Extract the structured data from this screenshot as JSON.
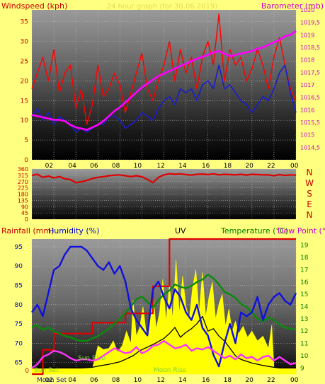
{
  "colors": {
    "background": "#ffff80",
    "wind": "#ff0000",
    "gust": "#ff0000",
    "avg_wind": "#1c1ccc",
    "barometer": "#ff00ff",
    "direction": "#e00000",
    "humidity": "#1010dd",
    "temperature": "#0a8a0a",
    "dew_point": "#ff33ff",
    "rain": "#e00000",
    "uv": "#ffff00",
    "solar": "#000000",
    "label_blue": "#0000cc",
    "label_green": "#008000",
    "label_magenta": "#cc00cc",
    "label_red": "#cc0000",
    "faint_yellow": "#e8d850",
    "sun_label": "#80d040"
  },
  "chart_data": [
    {
      "type": "line",
      "title": "24 hour graph (for 30.06.2019)",
      "left_axis_label": "Windspeed (kph)",
      "right_axis_label": "Barometer (mb)",
      "x_ticks": [
        "02",
        "04",
        "06",
        "08",
        "10",
        "12",
        "14",
        "16",
        "18",
        "20",
        "22",
        "00"
      ],
      "x_range": [
        0,
        24
      ],
      "left_range": [
        0,
        38
      ],
      "left_ticks": [
        "0",
        "5",
        "10",
        "15",
        "20",
        "25",
        "30",
        "35"
      ],
      "right_range": [
        1014,
        1020
      ],
      "right_ticks": [
        "1014,5",
        "1015",
        "1015,5",
        "1016",
        "1016,5",
        "1017",
        "1017,5",
        "1018",
        "1018,5",
        "1019",
        "1019,5",
        "1020"
      ],
      "grid": true,
      "series": [
        {
          "key": "gust",
          "axis": "left",
          "x": [
            0,
            0.5,
            1,
            1.5,
            2,
            2.5,
            3,
            3.5,
            4,
            4.5,
            5,
            5.5,
            6,
            6.5,
            7,
            7.5,
            8,
            8.5,
            9,
            9.5,
            10,
            10.5,
            11,
            11.5,
            12,
            12.5,
            13,
            13.5,
            14,
            14.5,
            15,
            15.5,
            16,
            16.5,
            17,
            17.5,
            18,
            18.5,
            19,
            19.5,
            20,
            20.5,
            21,
            21.5,
            22,
            22.5,
            23,
            23.5,
            24
          ],
          "values": [
            18,
            22,
            26,
            20,
            28,
            17,
            22,
            24,
            13,
            18,
            9,
            14,
            24,
            16,
            18,
            22,
            19,
            12,
            17,
            22,
            27,
            18,
            15,
            20,
            24,
            30,
            20,
            28,
            22,
            26,
            18,
            26,
            30,
            24,
            37,
            20,
            28,
            24,
            26,
            20,
            23,
            28,
            24,
            18,
            26,
            31,
            24,
            18,
            15
          ]
        },
        {
          "key": "avg_wind",
          "axis": "left",
          "x": [
            0,
            0.5,
            1,
            1.5,
            2,
            2.5,
            3,
            3.5,
            4,
            4.5,
            5,
            5.5,
            6,
            6.5,
            7,
            7.5,
            8,
            8.5,
            9,
            9.5,
            10,
            10.5,
            11,
            11.5,
            12,
            12.5,
            13,
            13.5,
            14,
            14.5,
            15,
            15.5,
            16,
            16.5,
            17,
            17.5,
            18,
            18.5,
            19,
            19.5,
            20,
            20.5,
            21,
            21.5,
            22,
            22.5,
            23,
            23.5,
            24
          ],
          "values": [
            11,
            13,
            10,
            12,
            9,
            11,
            10,
            9,
            7,
            8,
            7,
            8,
            9,
            9,
            11,
            11,
            10,
            8,
            9,
            10,
            12,
            11,
            10,
            13,
            15,
            16,
            14,
            18,
            17,
            18,
            15,
            19,
            20,
            18,
            24,
            18,
            19,
            17,
            15,
            14,
            12,
            14,
            16,
            15,
            18,
            22,
            24,
            17,
            12
          ]
        },
        {
          "key": "barometer",
          "axis": "right",
          "x": [
            0,
            0.5,
            1,
            1.5,
            2,
            2.5,
            3,
            3.5,
            4,
            4.5,
            5,
            5.5,
            6,
            6.5,
            7,
            7.5,
            8,
            8.5,
            9,
            9.5,
            10,
            10.5,
            11,
            11.5,
            12,
            12.5,
            13,
            13.5,
            14,
            14.5,
            15,
            15.5,
            16,
            16.5,
            17,
            17.5,
            18,
            18.5,
            19,
            19.5,
            20,
            20.5,
            21,
            21.5,
            22,
            22.5,
            23,
            23.5,
            24
          ],
          "values": [
            1015.8,
            1015.75,
            1015.7,
            1015.65,
            1015.6,
            1015.6,
            1015.55,
            1015.4,
            1015.3,
            1015.25,
            1015.2,
            1015.3,
            1015.4,
            1015.55,
            1015.75,
            1015.95,
            1016.1,
            1016.3,
            1016.5,
            1016.7,
            1016.9,
            1017.05,
            1017.2,
            1017.35,
            1017.45,
            1017.55,
            1017.65,
            1017.75,
            1017.85,
            1017.95,
            1018.05,
            1018.12,
            1018.2,
            1018.3,
            1018.35,
            1018.25,
            1018.15,
            1018.2,
            1018.25,
            1018.3,
            1018.35,
            1018.45,
            1018.5,
            1018.6,
            1018.7,
            1018.8,
            1018.95,
            1019.0,
            1019.15
          ]
        }
      ]
    },
    {
      "type": "line",
      "axis_labels": [
        "N",
        "W",
        "S",
        "E",
        "N"
      ],
      "x_range": [
        0,
        24
      ],
      "y_range": [
        0,
        360
      ],
      "y_ticks": [
        "0",
        "90",
        "180",
        "270",
        "360"
      ],
      "y_minor_ticks": [
        "45",
        "135",
        "225",
        "315"
      ],
      "series": [
        {
          "key": "direction",
          "x": [
            0,
            0.5,
            1,
            1.5,
            2,
            2.5,
            3,
            3.5,
            4,
            4.5,
            5,
            5.5,
            6,
            6.5,
            7,
            7.5,
            8,
            8.5,
            9,
            9.5,
            10,
            10.5,
            11,
            11.5,
            12,
            12.5,
            13,
            13.5,
            14,
            14.5,
            15,
            15.5,
            16,
            16.5,
            17,
            17.5,
            18,
            18.5,
            19,
            19.5,
            20,
            20.5,
            21,
            21.5,
            22,
            22.5,
            23,
            23.5,
            24
          ],
          "values": [
            315,
            322,
            300,
            310,
            296,
            306,
            290,
            284,
            262,
            268,
            278,
            292,
            300,
            305,
            312,
            316,
            318,
            312,
            306,
            312,
            304,
            286,
            262,
            300,
            318,
            326,
            322,
            326,
            320,
            316,
            322,
            324,
            320,
            326,
            318,
            322,
            320,
            318,
            322,
            316,
            322,
            320,
            318,
            318,
            312,
            320,
            314,
            318,
            316
          ]
        }
      ]
    },
    {
      "type": "line",
      "left_axis_labels": [
        "Rainfall (mm)",
        "Humidity (%)"
      ],
      "center_label": "UV",
      "right_axis_labels": [
        "Temperature (°C)",
        "Dew Point (°C)"
      ],
      "x_ticks": [
        "02",
        "04",
        "06",
        "08",
        "10",
        "12",
        "14",
        "16",
        "18",
        "20",
        "22",
        "00"
      ],
      "x_range": [
        0,
        24
      ],
      "humidity_range": [
        62,
        97
      ],
      "humidity_ticks": [
        "65",
        "70",
        "75",
        "80",
        "85",
        "90",
        "95"
      ],
      "rain_range": [
        0,
        1
      ],
      "rain_ticks": [
        "0"
      ],
      "temperature_range": [
        8.5,
        19.5
      ],
      "temperature_ticks": [
        "9",
        "10",
        "11",
        "12",
        "13",
        "14",
        "15",
        "16",
        "17",
        "18",
        "19"
      ],
      "annotations": [
        "Sun Set",
        "Sun Rise",
        "Moon Set",
        "Moon Rise"
      ],
      "series": [
        {
          "key": "humidity",
          "x": [
            0,
            0.5,
            1,
            1.5,
            2,
            2.5,
            3,
            3.5,
            4,
            4.5,
            5,
            5.5,
            6,
            6.5,
            7,
            7.5,
            8,
            8.5,
            9,
            9.5,
            10,
            10.5,
            11,
            11.5,
            12,
            12.5,
            13,
            13.5,
            14,
            14.5,
            15,
            15.5,
            16,
            16.5,
            17,
            17.5,
            18,
            18.5,
            19,
            19.5,
            20,
            20.5,
            21,
            21.5,
            22,
            22.5,
            23,
            23.5,
            24
          ],
          "values": [
            78,
            80,
            77,
            83,
            89,
            90,
            93,
            95,
            95,
            95,
            94,
            92,
            90,
            89,
            91,
            88,
            90,
            86,
            79,
            76,
            74,
            72,
            84,
            86,
            82,
            79,
            84,
            82,
            78,
            76,
            80,
            74,
            72,
            67,
            64,
            70,
            75,
            70,
            78,
            77,
            78,
            82,
            76,
            80,
            82,
            83,
            81,
            80,
            83
          ]
        },
        {
          "key": "temperature",
          "x": [
            0,
            0.5,
            1,
            1.5,
            2,
            2.5,
            3,
            3.5,
            4,
            4.5,
            5,
            5.5,
            6,
            6.5,
            7,
            7.5,
            8,
            8.5,
            9,
            9.5,
            10,
            10.5,
            11,
            11.5,
            12,
            12.5,
            13,
            13.5,
            14,
            14.5,
            15,
            15.5,
            16,
            16.5,
            17,
            17.5,
            18,
            18.5,
            19,
            19.5,
            20,
            20.5,
            21,
            21.5,
            22,
            22.5,
            23,
            23.5,
            24
          ],
          "values": [
            12.3,
            12.5,
            12.1,
            12.3,
            12.0,
            11.8,
            11.6,
            11.5,
            11.3,
            11.2,
            11.2,
            11.4,
            11.6,
            11.9,
            12.2,
            12.6,
            13.0,
            13.5,
            14.0,
            14.6,
            14.8,
            14.4,
            13.9,
            14.5,
            15.0,
            15.3,
            15.8,
            15.6,
            15.5,
            15.7,
            16.0,
            16.2,
            16.6,
            16.3,
            15.8,
            15.2,
            15.0,
            14.7,
            14.2,
            14.0,
            13.5,
            13.0,
            12.8,
            13.1,
            12.9,
            12.5,
            12.3,
            12.2,
            12.1
          ]
        },
        {
          "key": "dew_point",
          "x": [
            0,
            0.5,
            1,
            1.5,
            2,
            2.5,
            3,
            3.5,
            4,
            4.5,
            5,
            5.5,
            6,
            6.5,
            7,
            7.5,
            8,
            8.5,
            9,
            9.5,
            10,
            10.5,
            11,
            11.5,
            12,
            12.5,
            13,
            13.5,
            14,
            14.5,
            15,
            15.5,
            16,
            16.5,
            17,
            17.5,
            18,
            18.5,
            19,
            19.5,
            20,
            20.5,
            21,
            21.5,
            22,
            22.5,
            23,
            23.5,
            24
          ],
          "values": [
            9.0,
            9.3,
            9.9,
            10.1,
            10.4,
            10.3,
            10.1,
            9.8,
            9.6,
            9.7,
            9.7,
            9.6,
            9.7,
            10.0,
            10.3,
            10.6,
            10.4,
            10.2,
            10.3,
            10.7,
            10.2,
            10.4,
            10.8,
            10.9,
            11.2,
            10.9,
            10.6,
            10.7,
            10.9,
            10.4,
            10.6,
            10.5,
            10.7,
            10.4,
            10.1,
            9.8,
            10.0,
            9.7,
            10.1,
            9.8,
            9.9,
            9.6,
            9.9,
            10.0,
            9.6,
            9.9,
            9.6,
            9.3,
            9.4
          ]
        },
        {
          "key": "rain",
          "x": [
            0,
            1,
            1,
            2,
            2,
            5.5,
            5.5,
            8.5,
            8.5,
            11,
            11,
            12.5,
            12.5,
            24
          ],
          "values": [
            0,
            0,
            0.18,
            0.18,
            0.3,
            0.3,
            0.38,
            0.38,
            0.45,
            0.45,
            0.65,
            0.65,
            1.0,
            1.0
          ]
        },
        {
          "key": "solar",
          "x": [
            0,
            4.5,
            5.5,
            6,
            7,
            8,
            8.5,
            9.2,
            9.8,
            10.5,
            11.2,
            12,
            12.5,
            13,
            13.5,
            14,
            14.5,
            15,
            15.5,
            16,
            16.5,
            17,
            17.5,
            18,
            18.5,
            19,
            20,
            21,
            22,
            22.5,
            24
          ],
          "values": [
            9.0,
            9.0,
            9.05,
            9.15,
            9.3,
            9.5,
            9.7,
            10.0,
            10.4,
            10.7,
            11.0,
            11.4,
            11.8,
            12.3,
            11.5,
            11.9,
            12.2,
            12.6,
            13.2,
            12.0,
            12.2,
            11.6,
            11.2,
            10.6,
            10.0,
            9.7,
            9.4,
            9.2,
            9.05,
            9.0,
            9.0
          ]
        },
        {
          "key": "uv",
          "x": [
            0,
            5.5,
            5.6,
            6,
            6.5,
            7,
            7.4,
            7.8,
            8.2,
            8.6,
            9,
            9.2,
            9.5,
            9.8,
            10.1,
            10.4,
            10.7,
            11,
            11.3,
            11.6,
            11.9,
            12.2,
            12.5,
            12.8,
            13.1,
            13.4,
            13.7,
            14,
            14.3,
            14.6,
            14.9,
            15.2,
            15.5,
            15.8,
            16.1,
            16.4,
            16.7,
            17,
            17.3,
            17.6,
            17.9,
            18.2,
            18.5,
            18.8,
            19.2,
            19.6,
            20,
            20.5,
            21,
            21.5,
            21.8,
            22,
            24
          ],
          "values": [
            9,
            9,
            9.3,
            10.8,
            10.5,
            10.6,
            11.2,
            10.3,
            10.8,
            12.0,
            11.0,
            14.5,
            11.6,
            12.3,
            14.0,
            11.8,
            12.6,
            15.2,
            12.2,
            13.5,
            16.2,
            12.8,
            15.8,
            13.0,
            17.8,
            13.4,
            16.5,
            14.0,
            13.0,
            15.5,
            17.0,
            13.5,
            16.8,
            13.2,
            14.8,
            16.0,
            13.0,
            14.2,
            15.0,
            12.4,
            13.8,
            12.0,
            12.8,
            11.8,
            12.4,
            11.5,
            12.0,
            11.2,
            11.6,
            10.6,
            12.5,
            9.0,
            9.0
          ]
        }
      ]
    }
  ]
}
